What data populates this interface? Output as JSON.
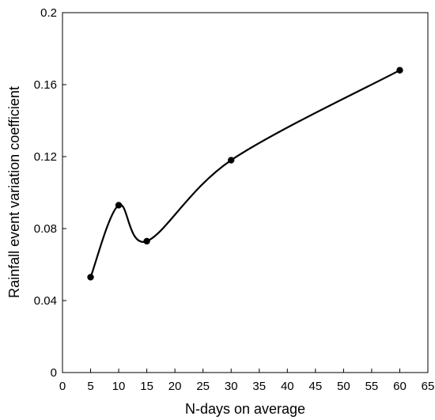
{
  "chart_data": {
    "type": "line",
    "title": "",
    "xlabel": "N-days on average",
    "ylabel": "Rainfall event variation coefficient",
    "xlim": [
      0,
      65
    ],
    "ylim": [
      0,
      0.2
    ],
    "x_ticks": [
      "0",
      "5",
      "10",
      "15",
      "20",
      "25",
      "30",
      "35",
      "40",
      "45",
      "50",
      "55",
      "60",
      "65"
    ],
    "y_ticks": [
      "0",
      "0.04",
      "0.08",
      "0.12",
      "0.16",
      "0.2"
    ],
    "grid": false,
    "smooth": true,
    "series": [
      {
        "x": [
          5,
          10,
          15,
          30,
          60
        ],
        "y": [
          0.053,
          0.093,
          0.073,
          0.118,
          0.168
        ]
      }
    ]
  }
}
